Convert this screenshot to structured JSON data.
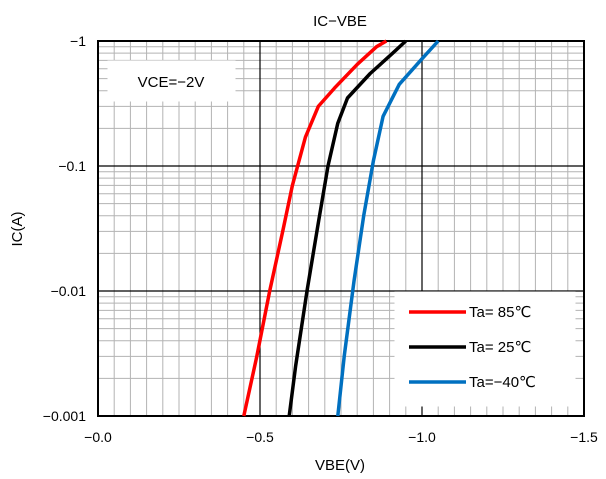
{
  "chart_data": {
    "type": "line",
    "title": "IC−VBE",
    "xlabel": "VBE(V)",
    "ylabel": "IC(A)",
    "x_axis": {
      "min": 0.0,
      "max": -1.5,
      "ticks": [
        0.0,
        -0.5,
        -1.0,
        -1.5
      ],
      "tick_labels": [
        "−0.0",
        "−0.5",
        "−1.0",
        "−1.5"
      ]
    },
    "y_axis": {
      "scale": "log",
      "min": -0.001,
      "max": -1,
      "ticks": [
        -0.001,
        -0.01,
        -0.1,
        -1
      ],
      "tick_labels": [
        "−0.001",
        "−0.01",
        "−0.1",
        "−1"
      ]
    },
    "grid": true,
    "annotation": "VCE=−2V",
    "legend_position": "bottom-right",
    "series": [
      {
        "name": "Ta= 85℃",
        "color": "#ff0000",
        "points": [
          [
            -0.45,
            -0.001
          ],
          [
            -0.49,
            -0.003
          ],
          [
            -0.53,
            -0.01
          ],
          [
            -0.57,
            -0.03
          ],
          [
            -0.6,
            -0.07
          ],
          [
            -0.64,
            -0.17
          ],
          [
            -0.68,
            -0.3
          ],
          [
            -0.73,
            -0.42
          ],
          [
            -0.8,
            -0.65
          ],
          [
            -0.86,
            -0.9
          ],
          [
            -0.89,
            -1
          ]
        ]
      },
      {
        "name": "Ta= 25℃",
        "color": "#000000",
        "points": [
          [
            -0.59,
            -0.001
          ],
          [
            -0.61,
            -0.0025
          ],
          [
            -0.645,
            -0.01
          ],
          [
            -0.68,
            -0.035
          ],
          [
            -0.71,
            -0.1
          ],
          [
            -0.74,
            -0.22
          ],
          [
            -0.77,
            -0.35
          ],
          [
            -0.84,
            -0.55
          ],
          [
            -0.91,
            -0.8
          ],
          [
            -0.95,
            -1
          ]
        ]
      },
      {
        "name": "Ta=−40℃",
        "color": "#0070c0",
        "points": [
          [
            -0.74,
            -0.001
          ],
          [
            -0.76,
            -0.003
          ],
          [
            -0.79,
            -0.012
          ],
          [
            -0.82,
            -0.04
          ],
          [
            -0.85,
            -0.11
          ],
          [
            -0.88,
            -0.25
          ],
          [
            -0.93,
            -0.45
          ],
          [
            -1.0,
            -0.72
          ],
          [
            -1.05,
            -1
          ]
        ]
      }
    ]
  }
}
